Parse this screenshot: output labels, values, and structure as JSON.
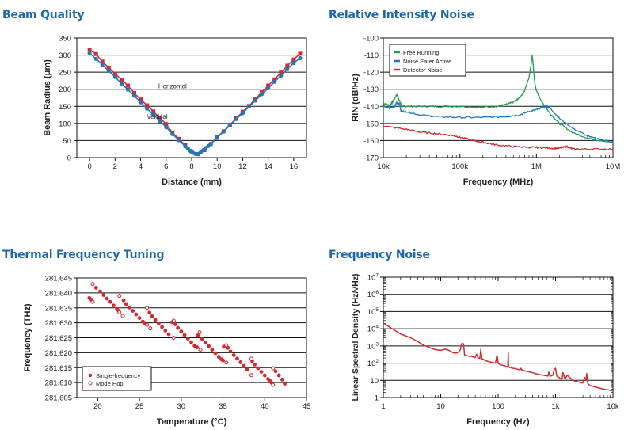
{
  "titles": {
    "beam": "Beam Quality",
    "rin": "Relative Intensity Noise",
    "thermal": "Thermal Frequency Tuning",
    "fnoise": "Frequency Noise"
  },
  "colors": {
    "title": "#1f66a8",
    "red": "#d42a2f",
    "blue": "#2277bb",
    "green": "#1fa04a"
  },
  "chart_data": [
    {
      "id": "beam",
      "type": "line",
      "title": "Beam Quality",
      "xlabel": "Distance (mm)",
      "ylabel": "Beam Radius (μm)",
      "xlim": [
        -1,
        17
      ],
      "ylim": [
        0,
        350
      ],
      "xticks": [
        0,
        2,
        4,
        6,
        8,
        10,
        12,
        14,
        16
      ],
      "yticks": [
        0,
        50,
        100,
        150,
        200,
        250,
        300,
        350
      ],
      "grid": "horizontal",
      "annotations": [
        {
          "text": "Horizontal",
          "x": 6.5,
          "y": 210
        },
        {
          "text": "Vertical",
          "x": 5.3,
          "y": 120
        }
      ],
      "series": [
        {
          "name": "Horizontal",
          "color": "#d42a2f",
          "marker": "square",
          "x": [
            0,
            0.5,
            1,
            1.5,
            2,
            2.5,
            3,
            3.5,
            4,
            4.5,
            5,
            5.5,
            6,
            6.5,
            7,
            7.5,
            8,
            8.5,
            9,
            9.5,
            10,
            10.5,
            11,
            11.5,
            12,
            12.5,
            13,
            13.5,
            14,
            14.5,
            15,
            15.5,
            16,
            16.5
          ],
          "y": [
            316,
            303,
            281,
            263,
            245,
            228,
            211,
            189,
            170,
            153,
            135,
            116,
            98,
            72,
            55,
            36,
            18,
            10,
            22,
            40,
            60,
            77,
            96,
            115,
            134,
            151,
            172,
            191,
            211,
            229,
            249,
            269,
            287,
            304
          ]
        },
        {
          "name": "Vertical",
          "color": "#2277bb",
          "marker": "circle",
          "x": [
            0,
            0.5,
            1,
            1.5,
            2,
            2.5,
            3,
            3.5,
            4,
            4.5,
            5,
            5.5,
            6,
            6.5,
            7,
            7.5,
            7.7,
            7.9,
            8.1,
            8.3,
            8.5,
            8.7,
            8.9,
            9.1,
            9.3,
            9.5,
            10,
            10.5,
            11,
            11.5,
            12,
            12.5,
            13,
            13.5,
            14,
            14.5,
            15,
            15.5,
            16,
            16.5
          ],
          "y": [
            306,
            289,
            272,
            254,
            236,
            217,
            199,
            181,
            162,
            143,
            126,
            107,
            89,
            69,
            51,
            33,
            27,
            20,
            14,
            11,
            11,
            15,
            21,
            28,
            34,
            40,
            58,
            76,
            94,
            113,
            130,
            149,
            167,
            186,
            203,
            222,
            240,
            259,
            277,
            291
          ]
        }
      ]
    },
    {
      "id": "rin",
      "type": "line",
      "title": "Relative Intensity Noise",
      "xlabel": "Frequency (MHz)",
      "ylabel": "RIN (dB/Hz)",
      "xscale": "log",
      "xlim": [
        10000,
        10000000
      ],
      "ylim": [
        -170,
        -100
      ],
      "xticks": [
        {
          "v": 10000,
          "label": "10k"
        },
        {
          "v": 100000,
          "label": "100k"
        },
        {
          "v": 1000000,
          "label": "1M"
        },
        {
          "v": 10000000,
          "label": "10M"
        }
      ],
      "yticks": [
        -170,
        -160,
        -150,
        -140,
        -130,
        -120,
        -110,
        -100
      ],
      "grid": "horizontal",
      "legend": "top-left",
      "series": [
        {
          "name": "Free Running",
          "color": "#1fa04a",
          "x": [
            10000,
            12000,
            13500,
            15000,
            16000,
            17500,
            20000,
            30000,
            50000,
            100000,
            200000,
            300000,
            400000,
            500000,
            600000,
            700000,
            800000,
            850000,
            880000,
            900000,
            950000,
            1000000,
            1200000,
            1500000,
            2000000,
            3000000,
            5000000,
            10000000
          ],
          "y": [
            -138,
            -139.5,
            -137,
            -133,
            -136,
            -140,
            -140,
            -140,
            -140,
            -140,
            -140.5,
            -140,
            -139,
            -137.5,
            -135,
            -131,
            -123,
            -116,
            -110,
            -114,
            -126,
            -131,
            -138,
            -144,
            -150,
            -155.5,
            -159,
            -161
          ]
        },
        {
          "name": "Noise Eater Active",
          "color": "#2277bb",
          "x": [
            10000,
            12000,
            14000,
            15000,
            16500,
            17000,
            20000,
            30000,
            50000,
            100000,
            200000,
            400000,
            600000,
            800000,
            1000000,
            1200000,
            1350000,
            1500000,
            2000000,
            3000000,
            5000000,
            10000000
          ],
          "y": [
            -140,
            -141,
            -140,
            -138,
            -139,
            -143,
            -143,
            -145,
            -146,
            -146.5,
            -146.5,
            -146,
            -145,
            -143,
            -142,
            -140.5,
            -140,
            -141,
            -147,
            -153,
            -158,
            -161
          ]
        },
        {
          "name": "Detector Noise",
          "color": "#d42a2f",
          "x": [
            10000,
            20000,
            30000,
            50000,
            80000,
            100000,
            150000,
            200000,
            300000,
            500000,
            800000,
            1000000,
            1500000,
            2000000,
            2500000,
            3000000,
            5000000,
            10000000
          ],
          "y": [
            -151.5,
            -153.5,
            -155,
            -156,
            -157,
            -158,
            -160,
            -161,
            -162.5,
            -163.5,
            -164,
            -164,
            -164.5,
            -164.5,
            -163.5,
            -165,
            -165,
            -165
          ]
        }
      ]
    },
    {
      "id": "thermal",
      "type": "scatter",
      "title": "Thermal Frequency Tuning",
      "xlabel": "Temperature (°C)",
      "ylabel": "Frequency (THz)",
      "xlim": [
        17.5,
        45
      ],
      "ylim": [
        281.605,
        281.645
      ],
      "xticks": [
        20,
        25,
        30,
        35,
        40,
        45
      ],
      "yticks": [
        "281.605",
        "281.610",
        "281.615",
        "281.620",
        "281.625",
        "281.630",
        "281.635",
        "281.640",
        "281.645"
      ],
      "grid": "horizontal",
      "legend": "bottom-left",
      "series": [
        {
          "name": "Single-frequency",
          "marker": "filled-circle",
          "color": "#d42a2f",
          "x": [
            19.0,
            19.2,
            19.8,
            20.3,
            20.7,
            21.1,
            21.5,
            21.9,
            22.3,
            22.5,
            23.1,
            23.4,
            23.8,
            24.2,
            24.6,
            25.0,
            25.4,
            25.6,
            26.2,
            26.5,
            26.9,
            27.3,
            27.7,
            28.1,
            28.5,
            28.9,
            29.3,
            29.6,
            30.0,
            30.4,
            30.8,
            31.2,
            31.6,
            31.9,
            32.0,
            32.5,
            32.9,
            33.3,
            33.7,
            34.1,
            34.5,
            34.8,
            35.0,
            35.1,
            35.6,
            35.9,
            36.3,
            36.7,
            37.1,
            37.5,
            37.9,
            38.5,
            38.8,
            39.2,
            39.6,
            40.0,
            40.4,
            40.6,
            40.8,
            41.3,
            41.7,
            42.1,
            42.4
          ],
          "y": [
            281.6383,
            281.6378,
            281.6417,
            281.6405,
            281.6393,
            281.6381,
            281.637,
            281.6358,
            281.6346,
            281.634,
            281.6375,
            281.6363,
            281.6351,
            281.634,
            281.6328,
            281.6316,
            281.6304,
            281.63,
            281.6334,
            281.6322,
            281.631,
            281.6298,
            281.6286,
            281.6274,
            281.6262,
            281.6302,
            281.6295,
            281.6283,
            281.6271,
            281.6259,
            281.6247,
            281.6235,
            281.6223,
            281.6218,
            281.6258,
            281.6246,
            281.6234,
            281.6222,
            281.621,
            281.6198,
            281.6186,
            281.6178,
            281.6174,
            281.622,
            281.6216,
            281.6204,
            281.6192,
            281.618,
            281.6168,
            281.6156,
            281.6144,
            281.6172,
            281.616,
            281.6148,
            281.6136,
            281.6124,
            281.6112,
            281.6106,
            281.61,
            281.6138,
            281.6124,
            281.611,
            281.6096
          ]
        },
        {
          "name": "Mode Hop",
          "marker": "open-circle",
          "color": "#d42a2f",
          "x": [
            19.4,
            19.4,
            22.6,
            22.6,
            23.0,
            25.9,
            25.9,
            26.3,
            29.1,
            29.1,
            32.2,
            32.3,
            35.4,
            35.4,
            38.4,
            38.4,
            41.0,
            41.0
          ],
          "y": [
            281.643,
            281.637,
            281.639,
            281.6335,
            281.6323,
            281.635,
            281.6293,
            281.6281,
            281.6307,
            281.625,
            281.6268,
            281.621,
            281.6225,
            281.6167,
            281.618,
            281.6125,
            281.6148,
            281.6092
          ]
        }
      ]
    },
    {
      "id": "fnoise",
      "type": "line",
      "title": "Frequency Noise",
      "xlabel": "Frequency (Hz)",
      "ylabel": "Linear Spectral Density (Hz/√Hz)",
      "xscale": "log",
      "yscale": "log",
      "xlim": [
        1,
        10000
      ],
      "ylim": [
        1,
        10000000
      ],
      "xticks": [
        {
          "v": 1,
          "label": "1"
        },
        {
          "v": 10,
          "label": "10"
        },
        {
          "v": 100,
          "label": "100"
        },
        {
          "v": 1000,
          "label": "1k"
        },
        {
          "v": 10000,
          "label": "10k"
        }
      ],
      "yticks": [
        {
          "v": 1,
          "base": "1",
          "exp": ""
        },
        {
          "v": 10,
          "base": "10",
          "exp": ""
        },
        {
          "v": 100,
          "base": "10",
          "exp": "2"
        },
        {
          "v": 1000,
          "base": "10",
          "exp": "3"
        },
        {
          "v": 10000,
          "base": "10",
          "exp": "4"
        },
        {
          "v": 100000,
          "base": "10",
          "exp": "5"
        },
        {
          "v": 1000000,
          "base": "10",
          "exp": "6"
        },
        {
          "v": 10000000,
          "base": "10",
          "exp": "7"
        }
      ],
      "grid": "horizontal",
      "series": [
        {
          "name": "Frequency Noise",
          "color": "#d42a2f",
          "x": [
            1,
            1.5,
            2,
            3,
            4,
            5,
            6,
            7,
            8,
            9,
            10,
            12,
            14,
            16,
            18,
            20,
            22,
            23,
            24,
            25,
            26,
            27,
            30,
            35,
            40,
            42,
            44,
            46,
            48,
            50,
            52,
            55,
            60,
            70,
            80,
            90,
            95,
            97,
            100,
            110,
            130,
            145,
            148,
            150,
            152,
            160,
            165,
            170,
            200,
            240,
            250,
            260,
            300,
            400,
            500,
            600,
            700,
            740,
            760,
            780,
            800,
            900,
            950,
            1000,
            1050,
            1100,
            1150,
            1200,
            1300,
            1350,
            1400,
            1450,
            1500,
            1600,
            1700,
            1800,
            2000,
            2500,
            3000,
            3200,
            3400,
            3500,
            3600,
            3700,
            4000,
            5000,
            7000,
            10000
          ],
          "y": [
            22000,
            9000,
            5000,
            3000,
            1800,
            1100,
            900,
            700,
            620,
            580,
            550,
            650,
            550,
            420,
            380,
            420,
            600,
            1300,
            1400,
            1300,
            300,
            290,
            260,
            240,
            210,
            330,
            220,
            200,
            190,
            650,
            180,
            170,
            140,
            120,
            110,
            100,
            280,
            250,
            95,
            80,
            70,
            60,
            70,
            420,
            60,
            55,
            60,
            52,
            48,
            40,
            50,
            40,
            35,
            28,
            22,
            20,
            18,
            18,
            30,
            25,
            17,
            20,
            45,
            50,
            18,
            15,
            15,
            13,
            12,
            28,
            20,
            12,
            14,
            20,
            16,
            14,
            10,
            8,
            7,
            15,
            10,
            25,
            8,
            6,
            5,
            4,
            3,
            2.5
          ]
        }
      ]
    }
  ]
}
